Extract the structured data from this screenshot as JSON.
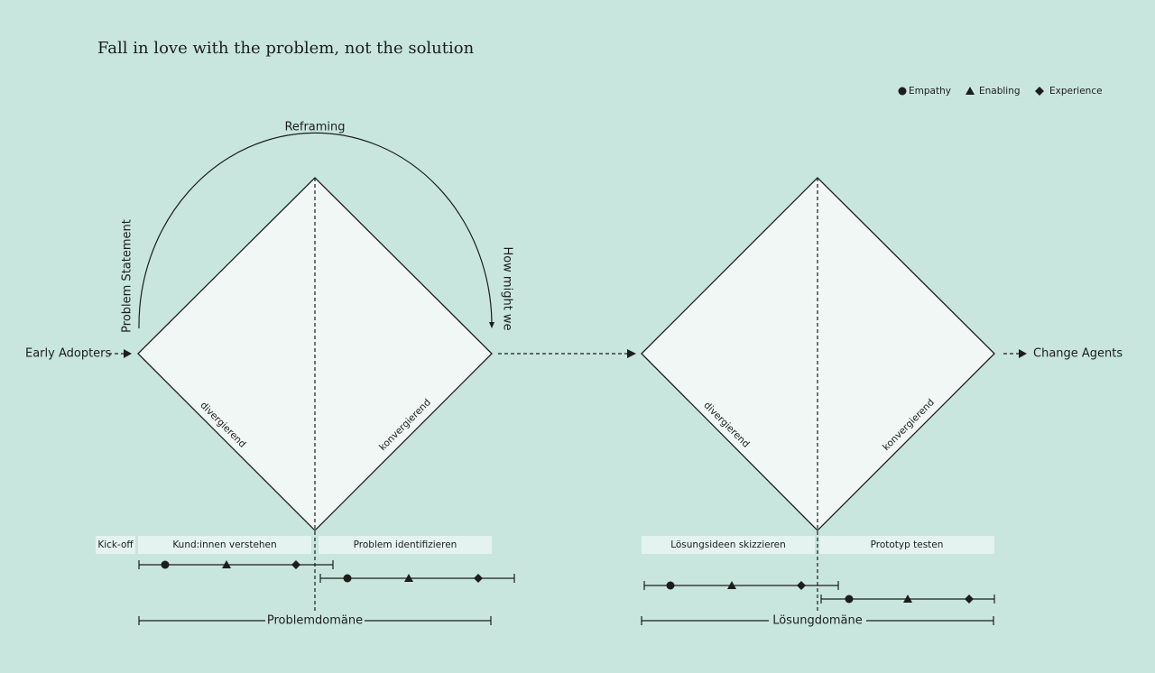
{
  "header": {
    "title": "Fall in love with the problem, not the solution"
  },
  "legend": [
    "Empathy",
    "Enabling",
    "Experience"
  ],
  "labels": {
    "reframing": "Reframing",
    "problem_statement": "Problem Statement",
    "how_might_we": "How might we",
    "start": "Early Adopters",
    "end": "Change Agents"
  },
  "diamonds": [
    {
      "left": "divergierend",
      "right": "konvergierend",
      "domain": "Problemdomäne"
    },
    {
      "left": "divergierend",
      "right": "konvergierend",
      "domain": "Lösungdomäne"
    }
  ],
  "phases": [
    "Kick-off",
    "Kund:innen verstehen",
    "Problem identifizieren",
    "Lösungsideen skizzieren",
    "Prototyp testen"
  ]
}
